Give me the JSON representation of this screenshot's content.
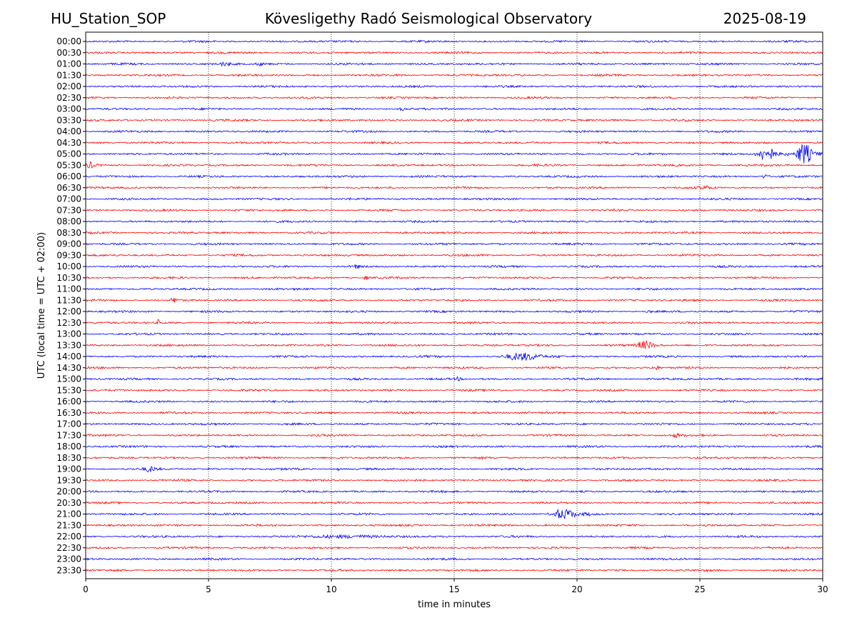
{
  "header": {
    "station": "HU_Station_SOP",
    "title": "Kövesligethy Radó Seismological Observatory",
    "date": "2025-08-19"
  },
  "chart_data": {
    "type": "line",
    "subtype": "helicorder",
    "title": "Kövesligethy Radó Seismological Observatory",
    "xlabel": "time in minutes",
    "ylabel": "UTC (local time = UTC + 02:00)",
    "xlim": [
      0,
      30
    ],
    "xticks": [
      0,
      5,
      10,
      15,
      20,
      25,
      30
    ],
    "vertical_gridlines_at": [
      5,
      10,
      15,
      20,
      25
    ],
    "grid_style": "dotted",
    "line_colors": [
      "#0000ff",
      "#ff0000"
    ],
    "rows": [
      "00:00",
      "00:30",
      "01:00",
      "01:30",
      "02:00",
      "02:30",
      "03:00",
      "03:30",
      "04:00",
      "04:30",
      "05:00",
      "05:30",
      "06:00",
      "06:30",
      "07:00",
      "07:30",
      "08:00",
      "08:30",
      "09:00",
      "09:30",
      "10:00",
      "10:30",
      "11:00",
      "11:30",
      "12:00",
      "12:30",
      "13:00",
      "13:30",
      "14:00",
      "14:30",
      "15:00",
      "15:30",
      "16:00",
      "16:30",
      "17:00",
      "17:30",
      "18:00",
      "18:30",
      "19:00",
      "19:30",
      "20:00",
      "20:30",
      "21:00",
      "21:30",
      "22:00",
      "22:30",
      "23:00",
      "23:30"
    ],
    "events": [
      {
        "row": "01:00",
        "start": 5.3,
        "end": 6.3,
        "amp": 2.2
      },
      {
        "row": "01:00",
        "start": 6.9,
        "end": 7.4,
        "amp": 1.8
      },
      {
        "row": "03:00",
        "start": 12.7,
        "end": 13.2,
        "amp": 1.5
      },
      {
        "row": "05:00",
        "start": 27.2,
        "end": 28.6,
        "amp": 9
      },
      {
        "row": "05:00",
        "start": 28.8,
        "end": 30.0,
        "amp": 14
      },
      {
        "row": "05:30",
        "start": 0.0,
        "end": 0.5,
        "amp": 3.5
      },
      {
        "row": "06:00",
        "start": 27.5,
        "end": 27.9,
        "amp": 2.5
      },
      {
        "row": "06:30",
        "start": 24.8,
        "end": 25.8,
        "amp": 2
      },
      {
        "row": "10:00",
        "start": 10.9,
        "end": 11.2,
        "amp": 3
      },
      {
        "row": "10:30",
        "start": 11.3,
        "end": 11.6,
        "amp": 3
      },
      {
        "row": "11:30",
        "start": 3.4,
        "end": 3.9,
        "amp": 3
      },
      {
        "row": "12:00",
        "start": 22.8,
        "end": 23.1,
        "amp": 2
      },
      {
        "row": "12:30",
        "start": 2.9,
        "end": 3.1,
        "amp": 4
      },
      {
        "row": "13:30",
        "start": 22.3,
        "end": 23.6,
        "amp": 5
      },
      {
        "row": "14:00",
        "start": 16.8,
        "end": 19.5,
        "amp": 4.5
      },
      {
        "row": "14:30",
        "start": 23.0,
        "end": 23.5,
        "amp": 3
      },
      {
        "row": "15:00",
        "start": 15.0,
        "end": 15.4,
        "amp": 2
      },
      {
        "row": "17:30",
        "start": 23.8,
        "end": 24.4,
        "amp": 2
      },
      {
        "row": "19:00",
        "start": 2.3,
        "end": 3.2,
        "amp": 3
      },
      {
        "row": "19:00",
        "start": 10.2,
        "end": 10.5,
        "amp": 1.8
      },
      {
        "row": "21:00",
        "start": 18.8,
        "end": 20.6,
        "amp": 6.5
      },
      {
        "row": "22:00",
        "start": 8.5,
        "end": 13.5,
        "amp": 1.8
      }
    ]
  }
}
